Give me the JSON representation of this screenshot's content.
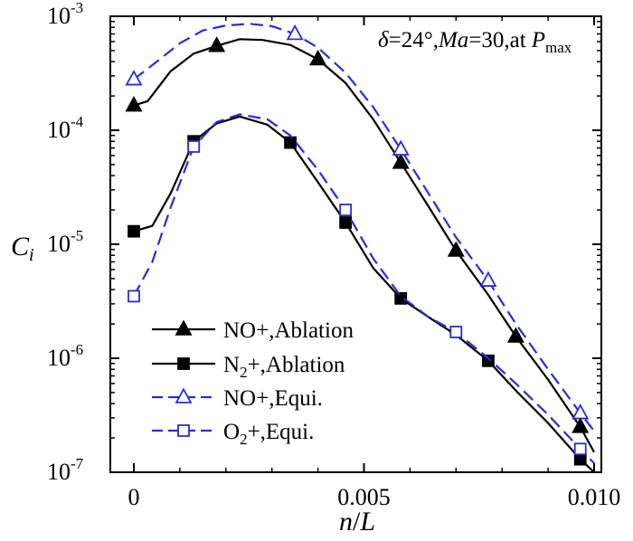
{
  "chart_data": {
    "type": "line",
    "title": "δ=24°, Ma=30,at P max",
    "annotation": {
      "delta_sym": "δ",
      "delta_val": "=24°,",
      "ma_sym": "Ma",
      "ma_val": "=30,at",
      "p_sym": "P",
      "p_sub": "max"
    },
    "xlabel": {
      "n": "n",
      "slash": "/",
      "l": "L"
    },
    "ylabel": {
      "c": "C",
      "sub": "i"
    },
    "xscale": "linear",
    "yscale": "log",
    "xlim": [
      -0.0003,
      0.0101
    ],
    "ylim": [
      1e-07,
      0.001
    ],
    "x_ticks": [
      {
        "value": 0,
        "label": "0"
      },
      {
        "value": 0.005,
        "label": "0.005"
      },
      {
        "value": 0.01,
        "label": "0.010"
      }
    ],
    "y_ticks": [
      {
        "value": 0.001,
        "base": "10",
        "exp": "-3"
      },
      {
        "value": 0.0001,
        "base": "10",
        "exp": "-4"
      },
      {
        "value": 1e-05,
        "base": "10",
        "exp": "-5"
      },
      {
        "value": 1e-06,
        "base": "10",
        "exp": "-6"
      },
      {
        "value": 1e-07,
        "base": "10",
        "exp": "-7"
      }
    ],
    "series": [
      {
        "name": "NO+,Ablation",
        "label_parts": [
          "NO+,Ablation"
        ],
        "color": "#000000",
        "dashed": false,
        "marker": "triangle",
        "filled": true,
        "curve": [
          [
            0,
            0.000165
          ],
          [
            0.0003,
            0.00018
          ],
          [
            0.0008,
            0.00033
          ],
          [
            0.0013,
            0.00047
          ],
          [
            0.0018,
            0.00055
          ],
          [
            0.0023,
            0.00063
          ],
          [
            0.0028,
            0.00062
          ],
          [
            0.0034,
            0.00056
          ],
          [
            0.004,
            0.00042
          ],
          [
            0.0046,
            0.00026
          ],
          [
            0.0052,
            0.000125
          ],
          [
            0.0058,
            5.2e-05
          ],
          [
            0.0064,
            2.15e-05
          ],
          [
            0.007,
            8.8e-06
          ],
          [
            0.0077,
            3.6e-06
          ],
          [
            0.0083,
            1.55e-06
          ],
          [
            0.009,
            6.5e-07
          ],
          [
            0.0097,
            2.5e-07
          ],
          [
            0.01,
            1.5e-07
          ]
        ],
        "markers": [
          [
            0,
            0.000165
          ],
          [
            0.0018,
            0.00055
          ],
          [
            0.004,
            0.00042
          ],
          [
            0.0058,
            5.2e-05
          ],
          [
            0.007,
            8.8e-06
          ],
          [
            0.0083,
            1.55e-06
          ],
          [
            0.0097,
            2.5e-07
          ]
        ]
      },
      {
        "name": "N2+,Ablation",
        "label_parts": [
          "N",
          "2",
          "+,Ablation"
        ],
        "color": "#000000",
        "dashed": false,
        "marker": "square",
        "filled": true,
        "curve": [
          [
            0,
            1.3e-05
          ],
          [
            0.0004,
            1.45e-05
          ],
          [
            0.0008,
            2.8e-05
          ],
          [
            0.0013,
            8e-05
          ],
          [
            0.0018,
            0.000115
          ],
          [
            0.0023,
            0.000132
          ],
          [
            0.0029,
            0.000112
          ],
          [
            0.0034,
            7.8e-05
          ],
          [
            0.004,
            3.5e-05
          ],
          [
            0.0046,
            1.55e-05
          ],
          [
            0.0052,
            6.2e-06
          ],
          [
            0.0058,
            3.35e-06
          ],
          [
            0.0064,
            2.3e-06
          ],
          [
            0.007,
            1.6e-06
          ],
          [
            0.0077,
            9.5e-07
          ],
          [
            0.0083,
            5.2e-07
          ],
          [
            0.009,
            2.7e-07
          ],
          [
            0.0097,
            1.3e-07
          ],
          [
            0.01,
            1e-07
          ]
        ],
        "markers": [
          [
            0,
            1.3e-05
          ],
          [
            0.0013,
            8e-05
          ],
          [
            0.0034,
            7.8e-05
          ],
          [
            0.0046,
            1.55e-05
          ],
          [
            0.0058,
            3.35e-06
          ],
          [
            0.0077,
            9.5e-07
          ],
          [
            0.0097,
            1.3e-07
          ]
        ]
      },
      {
        "name": "NO+,Equi.",
        "label_parts": [
          "NO+,Equi."
        ],
        "color": "#2b2bd9",
        "dashed": true,
        "marker": "triangle",
        "filled": false,
        "curve": [
          [
            0,
            0.00028
          ],
          [
            0.0005,
            0.0004
          ],
          [
            0.001,
            0.00058
          ],
          [
            0.0015,
            0.00075
          ],
          [
            0.002,
            0.00083
          ],
          [
            0.0025,
            0.00086
          ],
          [
            0.003,
            0.00082
          ],
          [
            0.0035,
            0.0007
          ],
          [
            0.004,
            0.00053
          ],
          [
            0.0046,
            0.00032
          ],
          [
            0.0052,
            0.00016
          ],
          [
            0.0058,
            6.8e-05
          ],
          [
            0.0064,
            2.8e-05
          ],
          [
            0.007,
            1.15e-05
          ],
          [
            0.0077,
            4.8e-06
          ],
          [
            0.0083,
            2e-06
          ],
          [
            0.009,
            8e-07
          ],
          [
            0.0097,
            3.3e-07
          ],
          [
            0.01,
            2.3e-07
          ]
        ],
        "markers": [
          [
            0,
            0.00028
          ],
          [
            0.0035,
            0.0007
          ],
          [
            0.0058,
            6.8e-05
          ],
          [
            0.0077,
            4.8e-06
          ],
          [
            0.0097,
            3.3e-07
          ]
        ]
      },
      {
        "name": "O2+,Equi.",
        "label_parts": [
          "O",
          "2",
          "+,Equi."
        ],
        "color": "#2b2bd9",
        "dashed": true,
        "marker": "square",
        "filled": false,
        "curve": [
          [
            0,
            3.5e-06
          ],
          [
            0.0004,
            7e-06
          ],
          [
            0.0008,
            2.1e-05
          ],
          [
            0.0013,
            7.2e-05
          ],
          [
            0.0018,
            0.000118
          ],
          [
            0.0023,
            0.000138
          ],
          [
            0.0029,
            0.000125
          ],
          [
            0.0034,
            9e-05
          ],
          [
            0.004,
            4.5e-05
          ],
          [
            0.0046,
            2e-05
          ],
          [
            0.0052,
            7.5e-06
          ],
          [
            0.0058,
            3.5e-06
          ],
          [
            0.0064,
            2.3e-06
          ],
          [
            0.007,
            1.7e-06
          ],
          [
            0.0077,
            1e-06
          ],
          [
            0.0083,
            6e-07
          ],
          [
            0.009,
            3.2e-07
          ],
          [
            0.0097,
            1.6e-07
          ],
          [
            0.01,
            1.2e-07
          ]
        ],
        "markers": [
          [
            0,
            3.5e-06
          ],
          [
            0.0013,
            7.2e-05
          ],
          [
            0.0046,
            2e-05
          ],
          [
            0.007,
            1.7e-06
          ],
          [
            0.0097,
            1.6e-07
          ]
        ]
      }
    ]
  }
}
